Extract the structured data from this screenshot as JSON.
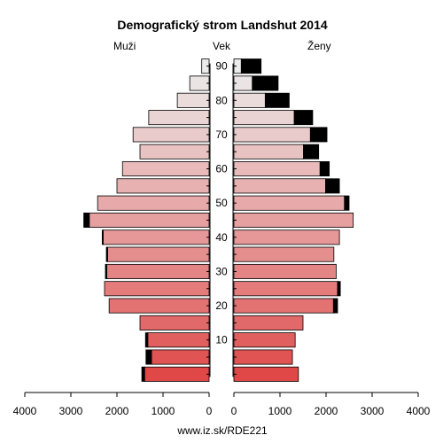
{
  "chart_data": {
    "type": "bar",
    "title": "Demografický strom Landshut 2014",
    "left_label": "Muži",
    "center_label": "Vek",
    "right_label": "Ženy",
    "footer": "www.iz.sk/RDE221",
    "x_ticks_left": [
      "4000",
      "3000",
      "2000",
      "1000",
      "0"
    ],
    "x_ticks_right": [
      "0",
      "1000",
      "2000",
      "3000",
      "4000"
    ],
    "x_max": 4000,
    "age_ticks": [
      10,
      20,
      30,
      40,
      50,
      60,
      70,
      80,
      90
    ],
    "age_groups": [
      "0-4",
      "5-9",
      "10-14",
      "15-19",
      "20-24",
      "25-29",
      "30-34",
      "35-39",
      "40-44",
      "45-49",
      "50-54",
      "55-59",
      "60-64",
      "65-69",
      "70-74",
      "75-79",
      "80-84",
      "85-89",
      "90+"
    ],
    "series": [
      {
        "name": "Muži",
        "values": [
          1400,
          1250,
          1330,
          1500,
          2170,
          2270,
          2220,
          2200,
          2300,
          2600,
          2420,
          2000,
          1880,
          1500,
          1650,
          1310,
          690,
          420,
          160
        ],
        "surplus": [
          60,
          120,
          50,
          0,
          0,
          0,
          30,
          30,
          20,
          120,
          0,
          0,
          0,
          0,
          0,
          0,
          0,
          0,
          0
        ]
      },
      {
        "name": "Ženy",
        "values": [
          1400,
          1270,
          1330,
          1500,
          2160,
          2250,
          2220,
          2170,
          2290,
          2590,
          2400,
          1990,
          1870,
          1510,
          1660,
          1310,
          680,
          400,
          160
        ],
        "surplus": [
          0,
          0,
          0,
          0,
          90,
          60,
          0,
          0,
          0,
          0,
          100,
          300,
          200,
          330,
          360,
          400,
          520,
          560,
          430
        ]
      }
    ],
    "colors": {
      "young": "#e04848",
      "old": "#ececec",
      "surplus": "#000000",
      "stroke": "#000000"
    },
    "grid": false
  }
}
